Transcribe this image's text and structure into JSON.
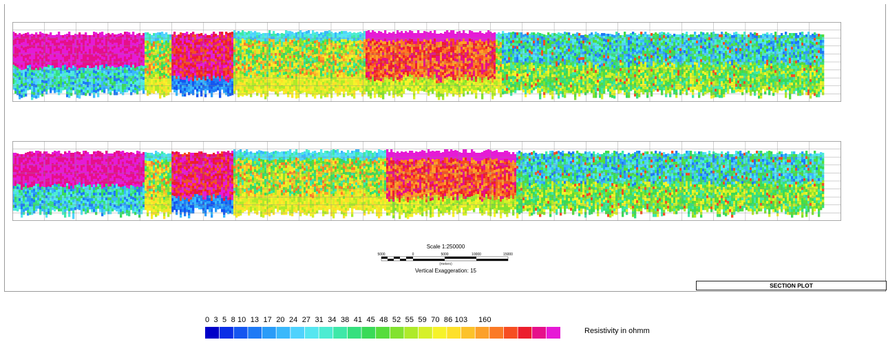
{
  "sections": [
    {
      "name": "section-top"
    },
    {
      "name": "section-bottom"
    }
  ],
  "scale": {
    "title": "Scale 1:250000",
    "ticks": [
      "5000",
      "0",
      "5000",
      "10000",
      "15000"
    ],
    "units": "(meters)",
    "vertical_exaggeration": "Vertical Exaggeration: 15"
  },
  "plot_label": "SECTION PLOT",
  "legend": {
    "values_line": "0  3  5  8 10  13  17  20  24  27  31  34  38  41  45  48  52  55  59  70  86 103     160",
    "title": "Resistivity in ohmm",
    "colors": [
      "#0000c8",
      "#0a2ee6",
      "#1556f0",
      "#1e7af5",
      "#2a9cf8",
      "#3ab8fb",
      "#4fd2fd",
      "#55e6f0",
      "#4cecd2",
      "#3fe8a8",
      "#36e07e",
      "#3ada58",
      "#56dc3c",
      "#82e230",
      "#aeea2a",
      "#d6f02a",
      "#f6f22a",
      "#fde02a",
      "#fcc22a",
      "#fca02a",
      "#fb7a26",
      "#f64e22",
      "#ec1e2e",
      "#e6108a",
      "#e61ad6"
    ]
  }
}
